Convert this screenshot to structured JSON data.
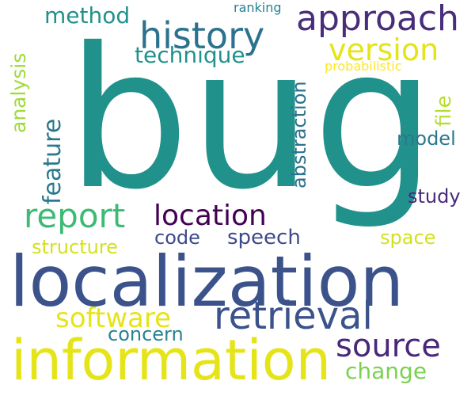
{
  "words": [
    {
      "key": "bug",
      "text": "bug",
      "color": "#21918c"
    },
    {
      "key": "localization",
      "text": "localization",
      "color": "#3b528b"
    },
    {
      "key": "information",
      "text": "information",
      "color": "#e5e419"
    },
    {
      "key": "history",
      "text": "history",
      "color": "#2c728e"
    },
    {
      "key": "approach",
      "text": "approach",
      "color": "#472d7b"
    },
    {
      "key": "retrieval",
      "text": "retrieval",
      "color": "#3b528b"
    },
    {
      "key": "report",
      "text": "report",
      "color": "#3bbb75"
    },
    {
      "key": "location",
      "text": "location",
      "color": "#440154"
    },
    {
      "key": "source",
      "text": "source",
      "color": "#482878"
    },
    {
      "key": "version",
      "text": "version",
      "color": "#e5e419"
    },
    {
      "key": "software",
      "text": "software",
      "color": "#e5e419"
    },
    {
      "key": "technique",
      "text": "technique",
      "color": "#21918c"
    },
    {
      "key": "method",
      "text": "method",
      "color": "#21918c"
    },
    {
      "key": "change",
      "text": "change",
      "color": "#7ad151"
    },
    {
      "key": "speech",
      "text": "speech",
      "color": "#3e4989"
    },
    {
      "key": "structure",
      "text": "structure",
      "color": "#d2e21b"
    },
    {
      "key": "concern",
      "text": "concern",
      "color": "#26828e"
    },
    {
      "key": "code",
      "text": "code",
      "color": "#3e4989"
    },
    {
      "key": "study",
      "text": "study",
      "color": "#482878"
    },
    {
      "key": "space",
      "text": "space",
      "color": "#d2e21b"
    },
    {
      "key": "model",
      "text": "model",
      "color": "#2a788e"
    },
    {
      "key": "ranking",
      "text": "ranking",
      "color": "#26828e"
    },
    {
      "key": "probabilistic",
      "text": "probabilistic",
      "color": "#fde725"
    },
    {
      "key": "feature",
      "text": "feature",
      "color": "#2a788e"
    },
    {
      "key": "analysis",
      "text": "analysis",
      "color": "#a0da39"
    },
    {
      "key": "abstraction",
      "text": "abstraction",
      "color": "#2c728e"
    },
    {
      "key": "file",
      "text": "file",
      "color": "#b5de2b"
    }
  ]
}
